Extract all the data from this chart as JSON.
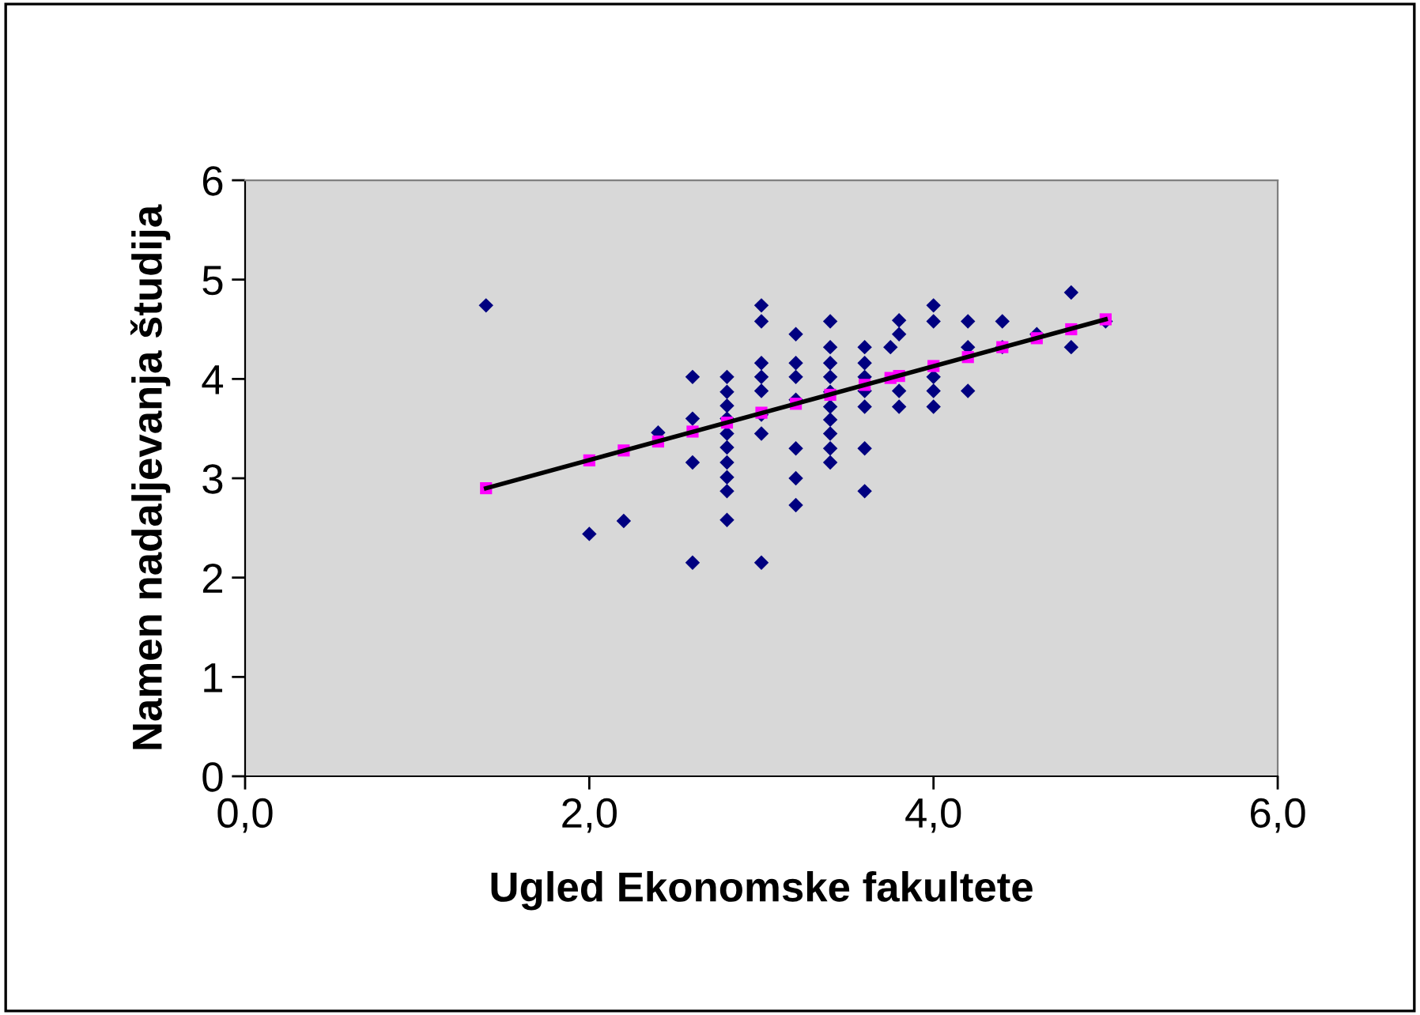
{
  "chart_data": {
    "type": "scatter",
    "xlabel": "Ugled Ekonomske fakultete",
    "ylabel": "Namen nadaljevanja študija",
    "xlim": [
      0,
      6
    ],
    "ylim": [
      0,
      6
    ],
    "xticks": [
      {
        "value": 0,
        "label": "0,0"
      },
      {
        "value": 2,
        "label": "2,0"
      },
      {
        "value": 4,
        "label": "4,0"
      },
      {
        "value": 6,
        "label": "6,0"
      }
    ],
    "yticks": [
      0,
      1,
      2,
      3,
      4,
      5,
      6
    ],
    "grid": false,
    "legend": false,
    "series": [
      {
        "marker": "diamond",
        "color": "#000080",
        "x": [
          1.4,
          2.0,
          2.2,
          2.4,
          2.6,
          2.6,
          2.6,
          2.6,
          2.8,
          2.8,
          2.8,
          2.8,
          2.8,
          2.8,
          2.8,
          2.8,
          2.8,
          2.8,
          3.0,
          3.0,
          3.0,
          3.0,
          3.0,
          3.0,
          3.0,
          3.0,
          3.2,
          3.2,
          3.2,
          3.2,
          3.2,
          3.2,
          3.2,
          3.4,
          3.4,
          3.4,
          3.4,
          3.4,
          3.4,
          3.4,
          3.4,
          3.4,
          3.4,
          3.6,
          3.6,
          3.6,
          3.6,
          3.6,
          3.6,
          3.6,
          3.75,
          3.8,
          3.8,
          3.8,
          3.8,
          4.0,
          4.0,
          4.0,
          4.0,
          4.0,
          4.2,
          4.2,
          4.2,
          4.4,
          4.4,
          4.6,
          4.8,
          4.8,
          5.0
        ],
        "values": [
          4.74,
          2.44,
          2.57,
          3.46,
          4.02,
          3.6,
          3.16,
          2.15,
          4.02,
          3.87,
          3.73,
          3.6,
          3.45,
          3.31,
          3.16,
          3.01,
          2.87,
          2.58,
          4.74,
          4.58,
          4.16,
          4.02,
          3.88,
          3.64,
          3.45,
          2.15,
          4.45,
          4.16,
          4.02,
          3.79,
          3.3,
          3.0,
          2.73,
          4.58,
          4.32,
          4.16,
          4.02,
          3.87,
          3.72,
          3.59,
          3.45,
          3.3,
          3.16,
          4.32,
          4.16,
          4.02,
          3.88,
          3.72,
          3.3,
          2.87,
          4.32,
          4.59,
          4.45,
          3.88,
          3.72,
          4.74,
          4.58,
          4.02,
          3.88,
          3.72,
          4.58,
          4.32,
          3.88,
          4.58,
          4.32,
          4.45,
          4.87,
          4.32,
          4.58
        ]
      },
      {
        "marker": "square",
        "color": "#ff00ff",
        "x": [
          1.4,
          2.0,
          2.2,
          2.4,
          2.6,
          2.8,
          3.0,
          3.2,
          3.4,
          3.6,
          3.75,
          3.8,
          4.0,
          4.2,
          4.4,
          4.6,
          4.8,
          5.0
        ],
        "values": [
          2.9,
          3.18,
          3.28,
          3.37,
          3.47,
          3.56,
          3.66,
          3.75,
          3.84,
          3.94,
          4.01,
          4.03,
          4.13,
          4.22,
          4.32,
          4.41,
          4.5,
          4.6
        ]
      },
      {
        "type": "line",
        "marker": "none",
        "line_style": "solid",
        "color": "#000000",
        "x": [
          1.4,
          5.0
        ],
        "values": [
          2.9,
          4.6
        ]
      }
    ]
  }
}
